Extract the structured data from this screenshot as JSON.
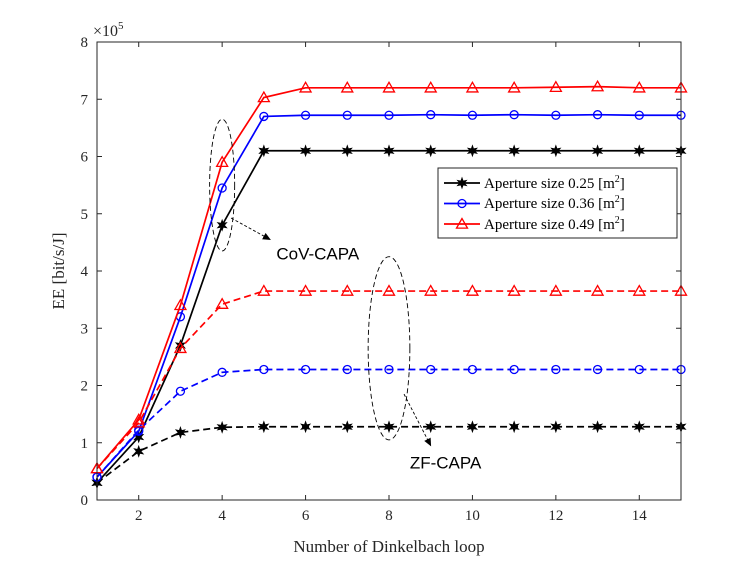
{
  "chart_data": {
    "type": "line",
    "xlabel": "Number of Dinkelbach loop",
    "ylabel": "EE [bit/s/J]",
    "xlim": [
      1,
      15
    ],
    "ylim": [
      0,
      8
    ],
    "xticks": [
      2,
      4,
      6,
      8,
      10,
      12,
      14
    ],
    "yticks": [
      0,
      1,
      2,
      3,
      4,
      5,
      6,
      7,
      8
    ],
    "y_multiplier": "×10",
    "y_multiplier_exp": "5",
    "x": [
      1,
      2,
      3,
      4,
      5,
      6,
      7,
      8,
      9,
      10,
      11,
      12,
      13,
      14,
      15
    ],
    "legend": {
      "position": "upper-right",
      "entries": [
        {
          "label": "Aperture size 0.25 [m",
          "sup": "2",
          "suffix": "]",
          "color": "#000000",
          "marker": "star"
        },
        {
          "label": "Aperture size 0.36 [m",
          "sup": "2",
          "suffix": "]",
          "color": "#0000ff",
          "marker": "circle"
        },
        {
          "label": "Aperture size 0.49 [m",
          "sup": "2",
          "suffix": "]",
          "color": "#ff0000",
          "marker": "triangle"
        }
      ]
    },
    "series": [
      {
        "name": "CoV-CAPA, Aperture size 0.25 [m^2]",
        "group": "CoV-CAPA",
        "color": "#000000",
        "dash": "solid",
        "marker": "star",
        "values": [
          0.3,
          1.1,
          2.7,
          4.8,
          6.1,
          6.1,
          6.1,
          6.1,
          6.1,
          6.1,
          6.1,
          6.1,
          6.1,
          6.1,
          6.1
        ]
      },
      {
        "name": "CoV-CAPA, Aperture size 0.36 [m^2]",
        "group": "CoV-CAPA",
        "color": "#0000ff",
        "dash": "solid",
        "marker": "circle",
        "values": [
          0.4,
          1.2,
          3.2,
          5.45,
          6.7,
          6.72,
          6.72,
          6.72,
          6.73,
          6.72,
          6.73,
          6.72,
          6.73,
          6.72,
          6.72
        ]
      },
      {
        "name": "CoV-CAPA, Aperture size 0.49 [m^2]",
        "group": "CoV-CAPA",
        "color": "#ff0000",
        "dash": "solid",
        "marker": "triangle",
        "values": [
          0.55,
          1.4,
          3.4,
          5.9,
          7.03,
          7.2,
          7.2,
          7.2,
          7.2,
          7.2,
          7.2,
          7.21,
          7.22,
          7.2,
          7.2
        ]
      },
      {
        "name": "ZF-CAPA, Aperture size 0.25 [m^2]",
        "group": "ZF-CAPA",
        "color": "#000000",
        "dash": "dashed",
        "marker": "star",
        "values": [
          0.3,
          0.85,
          1.18,
          1.27,
          1.28,
          1.28,
          1.28,
          1.28,
          1.28,
          1.28,
          1.28,
          1.28,
          1.28,
          1.28,
          1.28
        ]
      },
      {
        "name": "ZF-CAPA, Aperture size 0.36 [m^2]",
        "group": "ZF-CAPA",
        "color": "#0000ff",
        "dash": "dashed",
        "marker": "circle",
        "values": [
          0.4,
          1.22,
          1.9,
          2.23,
          2.28,
          2.28,
          2.28,
          2.28,
          2.28,
          2.28,
          2.28,
          2.28,
          2.28,
          2.28,
          2.28
        ]
      },
      {
        "name": "ZF-CAPA, Aperture size 0.49 [m^2]",
        "group": "ZF-CAPA",
        "color": "#ff0000",
        "dash": "dashed",
        "marker": "triangle",
        "values": [
          0.55,
          1.35,
          2.65,
          3.42,
          3.65,
          3.65,
          3.65,
          3.65,
          3.65,
          3.65,
          3.65,
          3.65,
          3.65,
          3.65,
          3.65
        ]
      }
    ],
    "annotations": [
      {
        "text": "CoV-CAPA",
        "group": "CoV-CAPA",
        "ellipse_center": [
          4.0,
          5.5
        ],
        "ellipse_rx": 0.3,
        "ellipse_ry": 1.15,
        "arrow_to": [
          5.15,
          4.55
        ],
        "text_at": [
          5.3,
          4.2
        ]
      },
      {
        "text": "ZF-CAPA",
        "group": "ZF-CAPA",
        "ellipse_center": [
          8.0,
          2.65
        ],
        "ellipse_rx": 0.5,
        "ellipse_ry": 1.6,
        "arrow_to": [
          9.0,
          0.95
        ],
        "text_at": [
          8.5,
          0.55
        ]
      }
    ]
  }
}
